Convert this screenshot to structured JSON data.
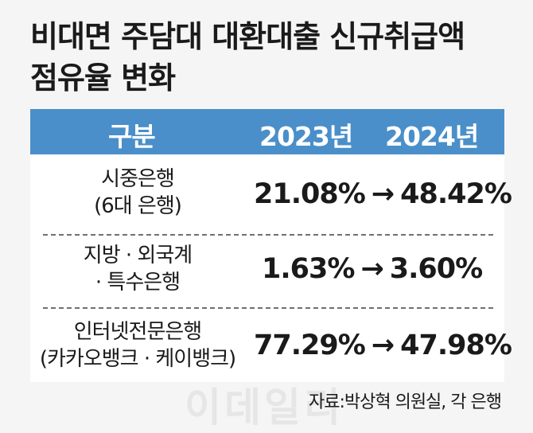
{
  "title_lines": [
    "비대면 주담대 대환대출 신규취급액",
    "점유율 변화"
  ],
  "chart_data": {
    "type": "table",
    "columns": [
      "구분",
      "2023년",
      "2024년"
    ],
    "rows": [
      {
        "label_lines": [
          "시중은행",
          "(6대 은행)"
        ],
        "value_2023": "21.08%",
        "value_2024": "48.42%"
      },
      {
        "label_lines": [
          "지방 · 외국계",
          "· 특수은행"
        ],
        "value_2023": "1.63%",
        "value_2024": "3.60%"
      },
      {
        "label_lines": [
          "인터넷전문은행",
          "(카카오뱅크 · 케이뱅크)"
        ],
        "value_2023": "77.29%",
        "value_2024": "47.98%"
      }
    ]
  },
  "arrow": "→",
  "source": "자료:박상혁 의원실, 각 은행",
  "watermark": "이데일리",
  "colors": {
    "header_bg": "#4a8fc9",
    "header_text": "#ffffff",
    "page_bg": "#f5f5f5"
  }
}
